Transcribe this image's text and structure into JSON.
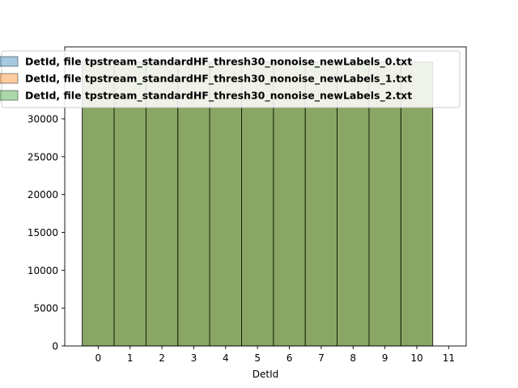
{
  "chart_data": {
    "type": "bar",
    "title": "",
    "xlabel": "DetId",
    "ylabel": "",
    "x_ticks": [
      "0",
      "1",
      "2",
      "3",
      "4",
      "5",
      "6",
      "7",
      "8",
      "9",
      "10",
      "11"
    ],
    "y_ticks": [
      "0",
      "5000",
      "10000",
      "15000",
      "20000",
      "25000",
      "30000"
    ],
    "xlim": [
      -1.05,
      11.55
    ],
    "ylim": [
      0,
      39500
    ],
    "bin_edges": [
      -0.5,
      0.5,
      1.5,
      2.5,
      3.5,
      4.5,
      5.5,
      6.5,
      7.5,
      8.5,
      9.5,
      10.5
    ],
    "series": [
      {
        "name": "DetId, file tpstream_standardHF_thresh30_nonoise_newLabels_0.txt",
        "color": "#1f77b4",
        "values": [
          37500,
          37500,
          37500,
          37500,
          37500,
          37500,
          37500,
          37500,
          37500,
          37500,
          37500
        ]
      },
      {
        "name": "DetId, file tpstream_standardHF_thresh30_nonoise_newLabels_1.txt",
        "color": "#ff7f0e",
        "values": [
          37500,
          37500,
          37500,
          37500,
          37500,
          37500,
          37500,
          37500,
          37500,
          37500,
          37500
        ]
      },
      {
        "name": "DetId, file tpstream_standardHF_thresh30_nonoise_newLabels_2.txt",
        "color": "#2ca02c",
        "values": [
          37500,
          37500,
          37500,
          37500,
          37500,
          37500,
          37500,
          37500,
          37500,
          37500,
          37500
        ]
      }
    ],
    "bar_fill": "#8aa567",
    "bar_edge": "#000000",
    "alpha": 0.4,
    "legend_position": "top-center",
    "grid": false
  }
}
